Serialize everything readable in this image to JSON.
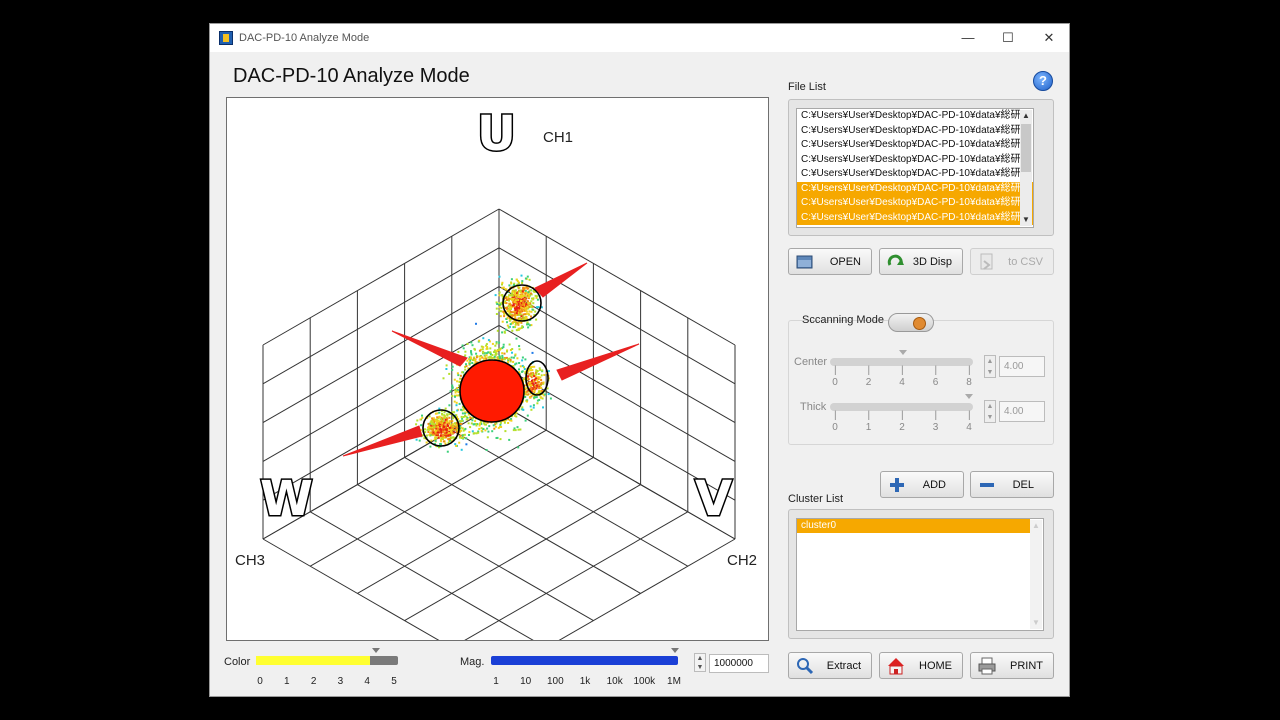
{
  "window": {
    "title": "DAC-PD-10 Analyze Mode",
    "controls": {
      "minimize": "—",
      "maximize": "☐",
      "close": "✕"
    }
  },
  "heading": "DAC-PD-10 Analyze Mode",
  "help_icon": "question-icon",
  "plot": {
    "axis_letters": {
      "u": "U",
      "v": "V",
      "w": "W"
    },
    "channels": {
      "ch1": "CH1",
      "ch2": "CH2",
      "ch3": "CH3"
    }
  },
  "color_bar": {
    "label": "Color",
    "ticks": [
      "0",
      "1",
      "2",
      "3",
      "4",
      "5"
    ],
    "value_fraction": 0.8
  },
  "mag_bar": {
    "label": "Mag.",
    "ticks": [
      "1",
      "10",
      "100",
      "1k",
      "10k",
      "100k",
      "1M"
    ],
    "value": "1000000"
  },
  "file_list": {
    "label": "File List",
    "items": [
      {
        "text": "C:¥Users¥User¥Desktop¥DAC-PD-10¥data¥総研",
        "selected": false
      },
      {
        "text": "C:¥Users¥User¥Desktop¥DAC-PD-10¥data¥総研",
        "selected": false
      },
      {
        "text": "C:¥Users¥User¥Desktop¥DAC-PD-10¥data¥総研",
        "selected": false
      },
      {
        "text": "C:¥Users¥User¥Desktop¥DAC-PD-10¥data¥総研",
        "selected": false
      },
      {
        "text": "C:¥Users¥User¥Desktop¥DAC-PD-10¥data¥総研",
        "selected": false
      },
      {
        "text": "C:¥Users¥User¥Desktop¥DAC-PD-10¥data¥総研",
        "selected": true
      },
      {
        "text": "C:¥Users¥User¥Desktop¥DAC-PD-10¥data¥総研",
        "selected": true
      },
      {
        "text": "C:¥Users¥User¥Desktop¥DAC-PD-10¥data¥総研",
        "selected": true
      }
    ]
  },
  "file_buttons": {
    "open": "OPEN",
    "disp3d": "3D Disp",
    "csv": "to CSV"
  },
  "scanning": {
    "label": "Sccanning Mode",
    "center": {
      "label": "Center",
      "ticks": [
        "0",
        "2",
        "4",
        "6",
        "8"
      ],
      "value": "4.00"
    },
    "thick": {
      "label": "Thick",
      "ticks": [
        "0",
        "1",
        "2",
        "3",
        "4"
      ],
      "value": "4.00"
    }
  },
  "cluster": {
    "label": "Cluster List",
    "add": "ADD",
    "del": "DEL",
    "items": [
      "cluster0"
    ]
  },
  "bottom_buttons": {
    "extract": "Extract",
    "home": "HOME",
    "print": "PRINT"
  },
  "colors": {
    "selection": "#f6a800",
    "accent": "#1d5fc8",
    "cluster_red": "#ff1a00"
  }
}
